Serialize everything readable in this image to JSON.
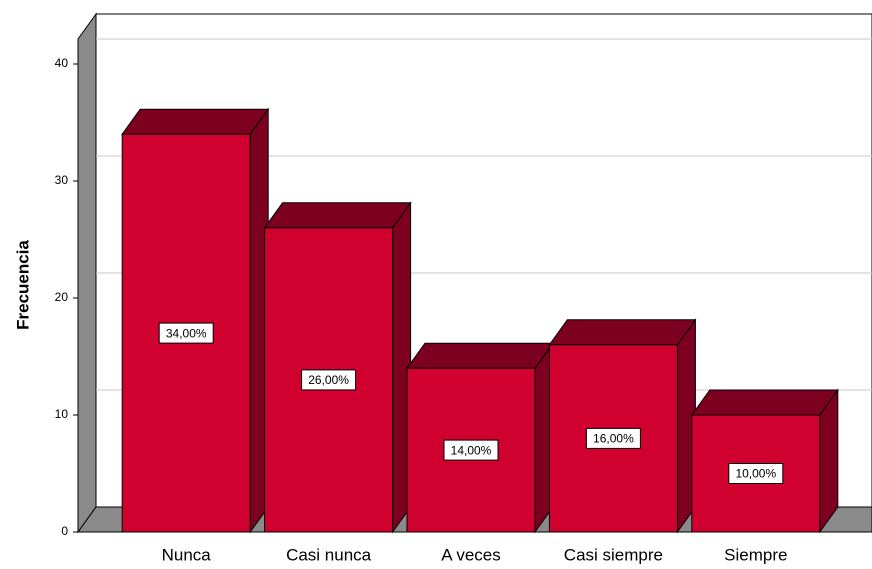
{
  "chart_data": {
    "type": "bar3d",
    "y_label": "Frecuencia",
    "categories": [
      "Nunca",
      "Casi nunca",
      "A veces",
      "Casi siempre",
      "Siempre"
    ],
    "values": [
      34,
      26,
      14,
      16,
      10
    ],
    "value_labels": [
      "34,00%",
      "26,00%",
      "14,00%",
      "16,00%",
      "10,00%"
    ],
    "color": "#d0002f",
    "side_color": "#7d0020",
    "ylim": [
      0,
      40
    ],
    "yticks": [
      0,
      10,
      20,
      30,
      40
    ],
    "grid": true
  }
}
